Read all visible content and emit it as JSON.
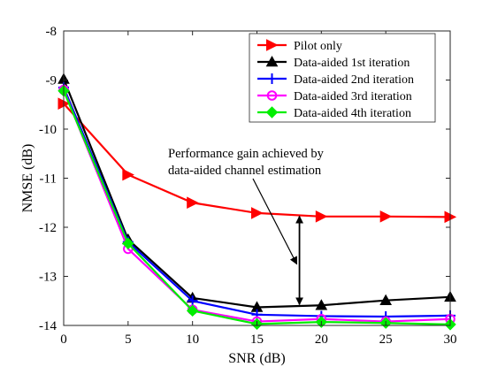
{
  "chart_data": {
    "type": "line",
    "xlabel": "SNR (dB)",
    "ylabel": "NMSE (dB)",
    "xlim": [
      0,
      30
    ],
    "ylim": [
      -14,
      -8
    ],
    "xticks": [
      0,
      5,
      10,
      15,
      20,
      25,
      30
    ],
    "yticks": [
      -8,
      -9,
      -10,
      -11,
      -12,
      -13,
      -14
    ],
    "grid": false,
    "legend_position": "top-right",
    "x": [
      0,
      5,
      10,
      15,
      20,
      25,
      30
    ],
    "series": [
      {
        "name": "Pilot only",
        "color": "#ff0000",
        "marker": "triangle-right",
        "values": [
          -9.48,
          -10.93,
          -11.5,
          -11.71,
          -11.78,
          -11.78,
          -11.79
        ]
      },
      {
        "name": "Data-aided 1st iteration",
        "color": "#000000",
        "marker": "triangle-up",
        "values": [
          -8.98,
          -12.25,
          -13.44,
          -13.63,
          -13.59,
          -13.49,
          -13.42
        ]
      },
      {
        "name": "Data-aided 2nd iteration",
        "color": "#0000ff",
        "marker": "plus",
        "values": [
          -9.15,
          -12.3,
          -13.5,
          -13.78,
          -13.81,
          -13.82,
          -13.8
        ]
      },
      {
        "name": "Data-aided 3rd iteration",
        "color": "#ff00ff",
        "marker": "circle",
        "values": [
          -9.2,
          -12.44,
          -13.68,
          -13.92,
          -13.87,
          -13.92,
          -13.87
        ]
      },
      {
        "name": "Data-aided 4th iteration",
        "color": "#00ee00",
        "marker": "diamond",
        "values": [
          -9.22,
          -12.33,
          -13.7,
          -13.97,
          -13.93,
          -13.95,
          -13.98
        ]
      }
    ],
    "annotation": {
      "lines": [
        "Performance gain achieved by",
        "data-aided channel estimation"
      ],
      "gap_x": 18.3,
      "gap_from": -11.74,
      "gap_to": -13.61
    }
  }
}
